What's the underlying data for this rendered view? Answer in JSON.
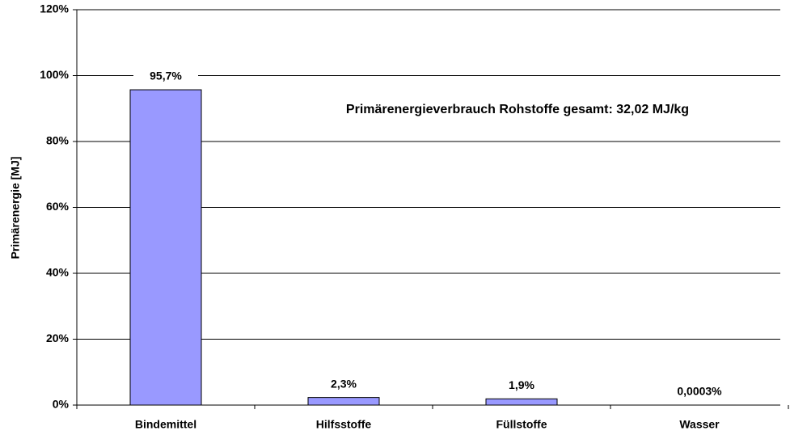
{
  "chart_data": {
    "type": "bar",
    "y_label": "Primärenergie [MJ]",
    "annotation": "Primärenergieverbrauch Rohstoffe gesamt: 32,02 MJ/kg",
    "categories": [
      "Bindemittel",
      "Hilfsstoffe",
      "Füllstoffe",
      "Wasser"
    ],
    "values": [
      95.7,
      2.3,
      1.9,
      0.0003
    ],
    "value_labels": [
      "95,7%",
      "2,3%",
      "1,9%",
      "0,0003%"
    ],
    "color": "#9999ff",
    "ylim": [
      0,
      120
    ],
    "yticks": [
      {
        "value": 0,
        "label": "0%"
      },
      {
        "value": 20,
        "label": "20%"
      },
      {
        "value": 40,
        "label": "40%"
      },
      {
        "value": 60,
        "label": "60%"
      },
      {
        "value": 80,
        "label": "80%"
      },
      {
        "value": 100,
        "label": "100%"
      },
      {
        "value": 120,
        "label": "120%"
      }
    ],
    "grid": true
  }
}
